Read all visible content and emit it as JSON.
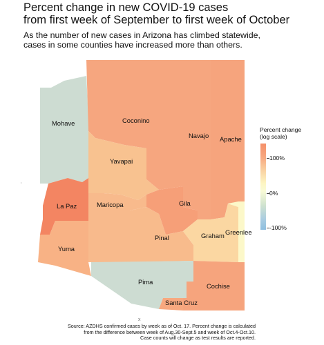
{
  "title_line1": "Percent change in new COVID-19 cases",
  "title_line2": "from first week of September to first week of October",
  "subtitle_line1": "As the number of new cases in Arizona has climbed statewide,",
  "subtitle_line2": "cases in some counties have increased more than others.",
  "legend": {
    "title_line1": "Percent change",
    "title_line2": "(log scale)",
    "ticks": [
      "100%",
      "0%",
      "-100%"
    ]
  },
  "counties": [
    {
      "name": "Mohave",
      "color": "#cddcd2"
    },
    {
      "name": "Coconino",
      "color": "#f6a67f"
    },
    {
      "name": "Navajo",
      "color": "#f6a67f"
    },
    {
      "name": "Apache",
      "color": "#f6a47d"
    },
    {
      "name": "Yavapai",
      "color": "#f8c290"
    },
    {
      "name": "La Paz",
      "color": "#f38562"
    },
    {
      "name": "Gila",
      "color": "#f69f78"
    },
    {
      "name": "Maricopa",
      "color": "#f8ba8c"
    },
    {
      "name": "Yuma",
      "color": "#f8b285"
    },
    {
      "name": "Pinal",
      "color": "#f8bb8c"
    },
    {
      "name": "Graham",
      "color": "#fbd7a2"
    },
    {
      "name": "Greenlee",
      "color": "#fcf8c9"
    },
    {
      "name": "Pima",
      "color": "#cddcd2"
    },
    {
      "name": "Cochise",
      "color": "#f6a47d"
    },
    {
      "name": "Santa Cruz",
      "color": "#f7a87f"
    }
  ],
  "source_line1": "Source: AZDHS confirmed cases by week as of Oct. 17. Percent change is calculated",
  "source_line2": "from the difference between week of Aug.30-Sept.5 and week of Oct.4-Oct.10.",
  "source_line3": "Case counts will change as test results are reported.",
  "stray_mark": "x"
}
